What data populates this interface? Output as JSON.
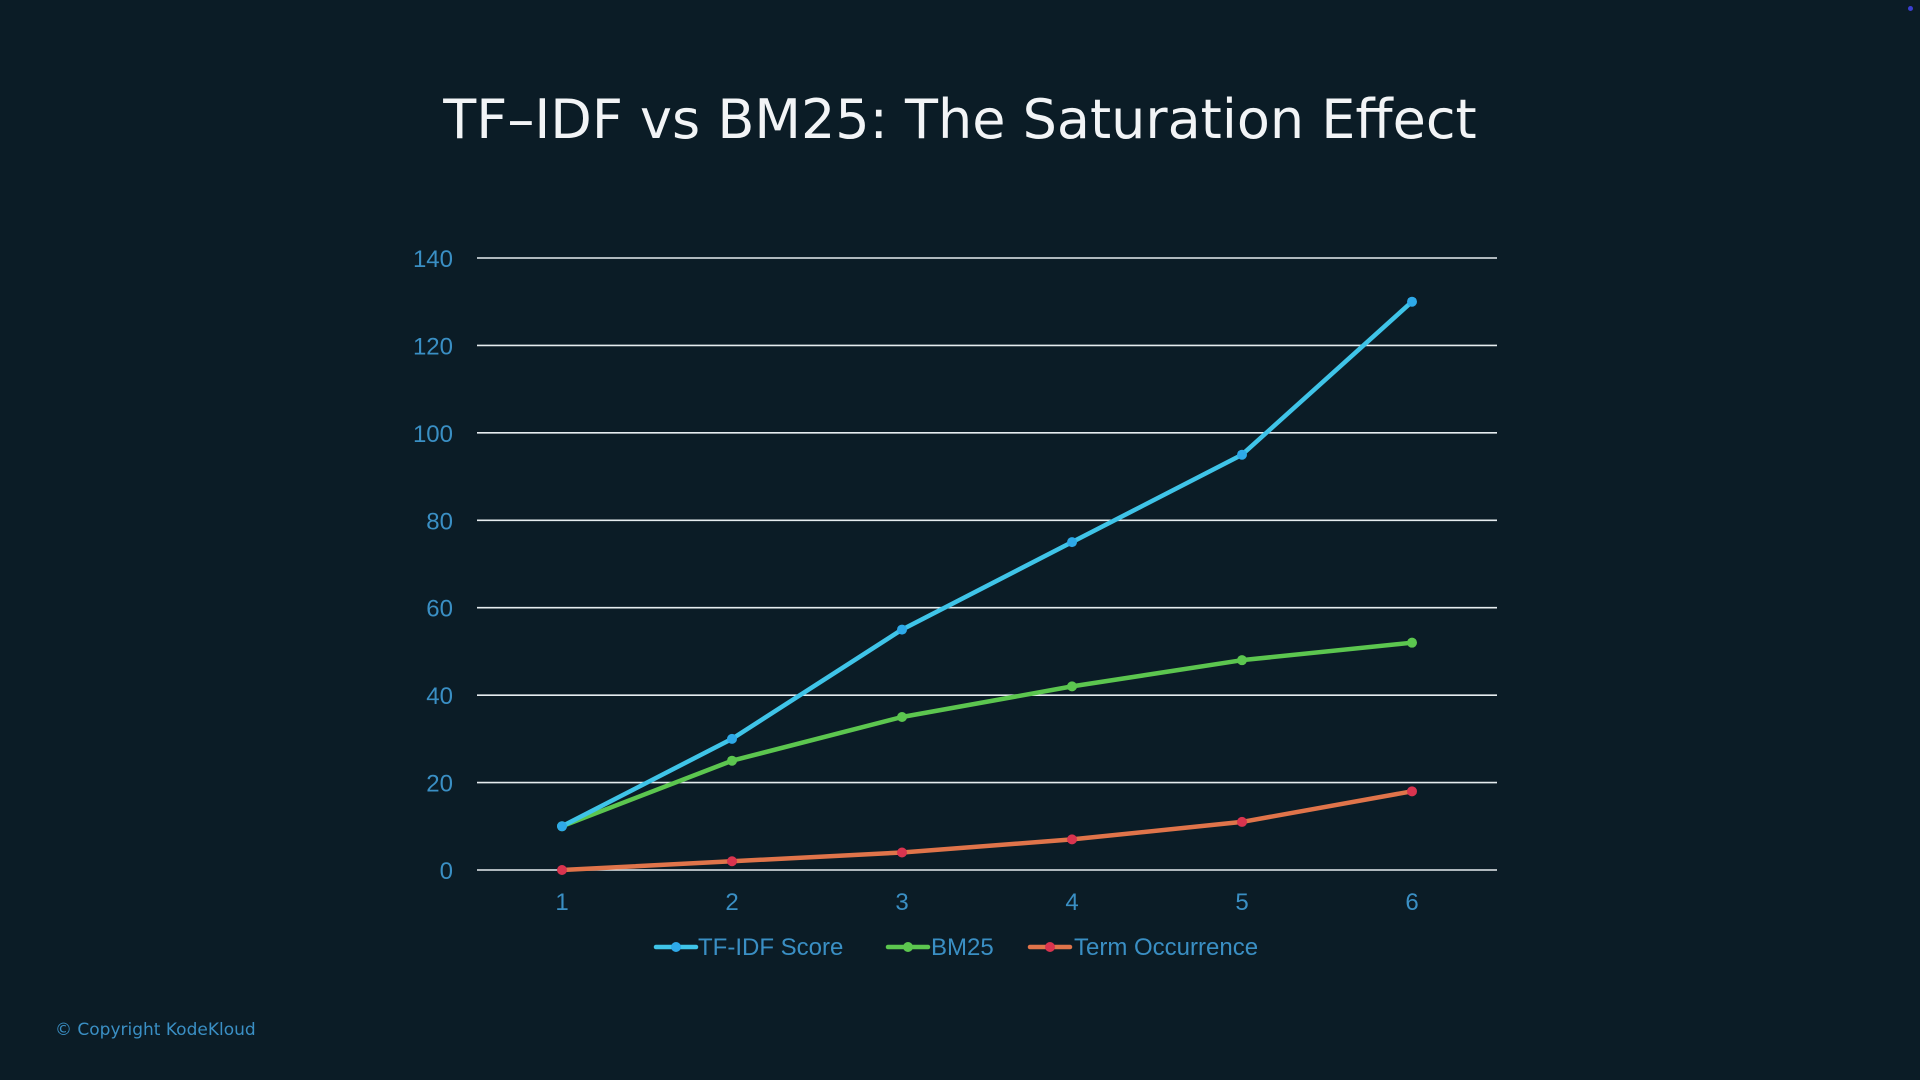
{
  "chart_data": {
    "type": "line",
    "title": "TF–IDF vs BM25: The Saturation Effect",
    "xlabel": "",
    "ylabel": "",
    "x": [
      1,
      2,
      3,
      4,
      5,
      6
    ],
    "ylim": [
      0,
      140
    ],
    "yticks": [
      0,
      20,
      40,
      60,
      80,
      100,
      120,
      140
    ],
    "grid": true,
    "legend": "bottom",
    "series": [
      {
        "name": "TF-IDF Score",
        "values": [
          10,
          30,
          55,
          75,
          95,
          130
        ],
        "color": "#3fc4e8"
      },
      {
        "name": "BM25",
        "values": [
          10,
          25,
          35,
          42,
          48,
          52
        ],
        "color": "#5cc64f"
      },
      {
        "name": "Term Occurrence",
        "values": [
          0,
          2,
          4,
          7,
          11,
          18
        ],
        "color": "#e0744a"
      }
    ]
  },
  "footer": {
    "copyright": "© Copyright KodeKloud"
  },
  "colors": {
    "background": "#0b1c26",
    "tick_label": "#3a8fc4",
    "grid": "#e6ecef"
  }
}
